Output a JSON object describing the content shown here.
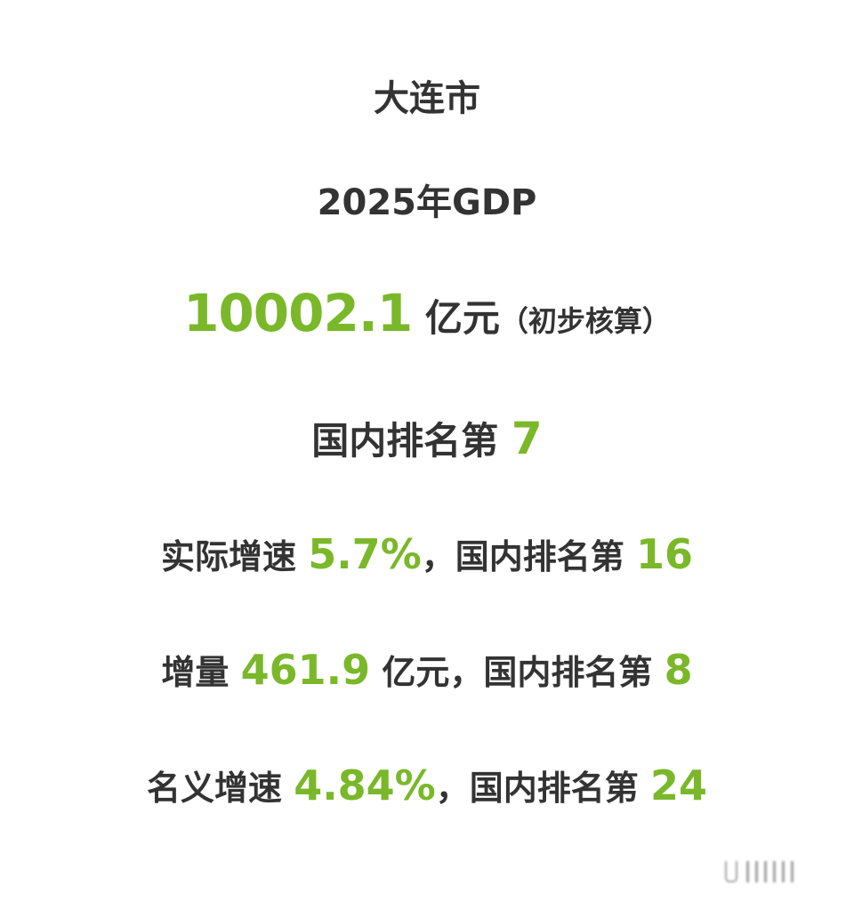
{
  "city": "大连市",
  "title": "2025年GDP",
  "gdp": {
    "value": "10002.1",
    "unit": "亿元",
    "note": "（初步核算）"
  },
  "rank": {
    "label": "国内排名第 ",
    "value": "7"
  },
  "real_growth": {
    "label": "实际增速 ",
    "value": "5.7%",
    "rank_label": "，国内排名第 ",
    "rank": "16"
  },
  "increment": {
    "label": "增量 ",
    "value": "461.9",
    "unit": " 亿元",
    "rank_label": "，国内排名第 ",
    "rank": "8"
  },
  "nominal_growth": {
    "label": "名义增速 ",
    "value": "4.84%",
    "rank_label": "，国内排名第 ",
    "rank": "24"
  },
  "colors": {
    "accent": "#7ab82a",
    "text": "#333333"
  }
}
